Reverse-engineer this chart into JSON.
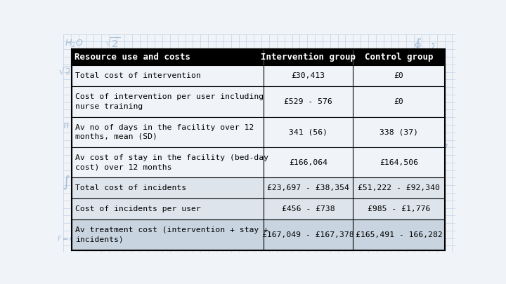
{
  "title_col": "Resource use and costs",
  "col2": "Intervention group",
  "col3": "Control group",
  "header_bg": "#000000",
  "header_fg": "#ffffff",
  "border_color": "#000000",
  "text_color": "#000000",
  "grid_color": "#b8c8e0",
  "bg_color": "#f0f4f8",
  "col_splits": [
    0.0,
    0.515,
    0.755,
    1.0
  ],
  "rows": [
    {
      "label": "Total cost of intervention",
      "intervention": "£30,413",
      "control": "£0",
      "bold": false,
      "multiline": false,
      "bg": "#f0f4f8"
    },
    {
      "label": "Cost of intervention per user including\nnurse training",
      "intervention": "£529 - 576",
      "control": "£0",
      "bold": false,
      "multiline": true,
      "bg": "#f0f4f8"
    },
    {
      "label": "Av no of days in the facility over 12\nmonths, mean (SD)",
      "intervention": "341 (56)",
      "control": "338 (37)",
      "bold": false,
      "multiline": true,
      "bg": "#f0f4f8"
    },
    {
      "label": "Av cost of stay in the facility (bed-day\ncost) over 12 months",
      "intervention": "£166,064",
      "control": "£164,506",
      "bold": false,
      "multiline": true,
      "bg": "#f0f4f8"
    },
    {
      "label": "Total cost of incidents",
      "intervention": "£23,697 - £38,354",
      "control": "£51,222 - £92,340",
      "bold": false,
      "multiline": false,
      "bg": "#dde4ec"
    },
    {
      "label": "Cost of incidents per user",
      "intervention": "£456 - £738",
      "control": "£985 - £1,776",
      "bold": false,
      "multiline": false,
      "bg": "#dde4ec"
    },
    {
      "label": "Av treatment cost (intervention + stay +\nincidents)",
      "intervention": "£167,049 - £167,378",
      "control": "£165,491 - 166,282",
      "bold": false,
      "multiline": true,
      "bg": "#c8d4e0"
    }
  ]
}
